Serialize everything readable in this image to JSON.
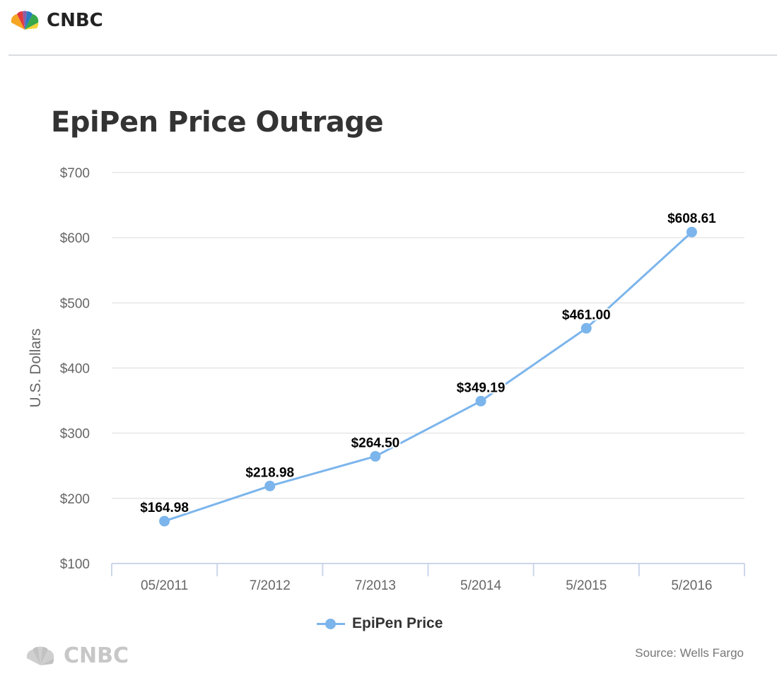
{
  "header": {
    "logo_text": "CNBC"
  },
  "footer": {
    "logo_text": "CNBC",
    "source": "Source: Wells Fargo"
  },
  "colors": {
    "series": "#7cb5ec",
    "grid": "#e6e6e6",
    "axis": "#ccd6eb",
    "title": "#333333",
    "tick": "#666666"
  },
  "chart_data": {
    "type": "line",
    "title": "EpiPen Price Outrage",
    "xlabel": "",
    "ylabel": "U.S. Dollars",
    "categories": [
      "05/2011",
      "7/2012",
      "7/2013",
      "5/2014",
      "5/2015",
      "5/2016"
    ],
    "series": [
      {
        "name": "EpiPen Price",
        "values": [
          164.98,
          218.98,
          264.5,
          349.19,
          461.0,
          608.61
        ],
        "labels": [
          "$164.98",
          "$218.98",
          "$264.50",
          "$349.19",
          "$461.00",
          "$608.61"
        ]
      }
    ],
    "ylim": [
      100,
      700
    ],
    "yticks": [
      100,
      200,
      300,
      400,
      500,
      600,
      700
    ],
    "ytick_labels": [
      "$100",
      "$200",
      "$300",
      "$400",
      "$500",
      "$600",
      "$700"
    ],
    "grid": true,
    "legend": "bottom-center"
  }
}
